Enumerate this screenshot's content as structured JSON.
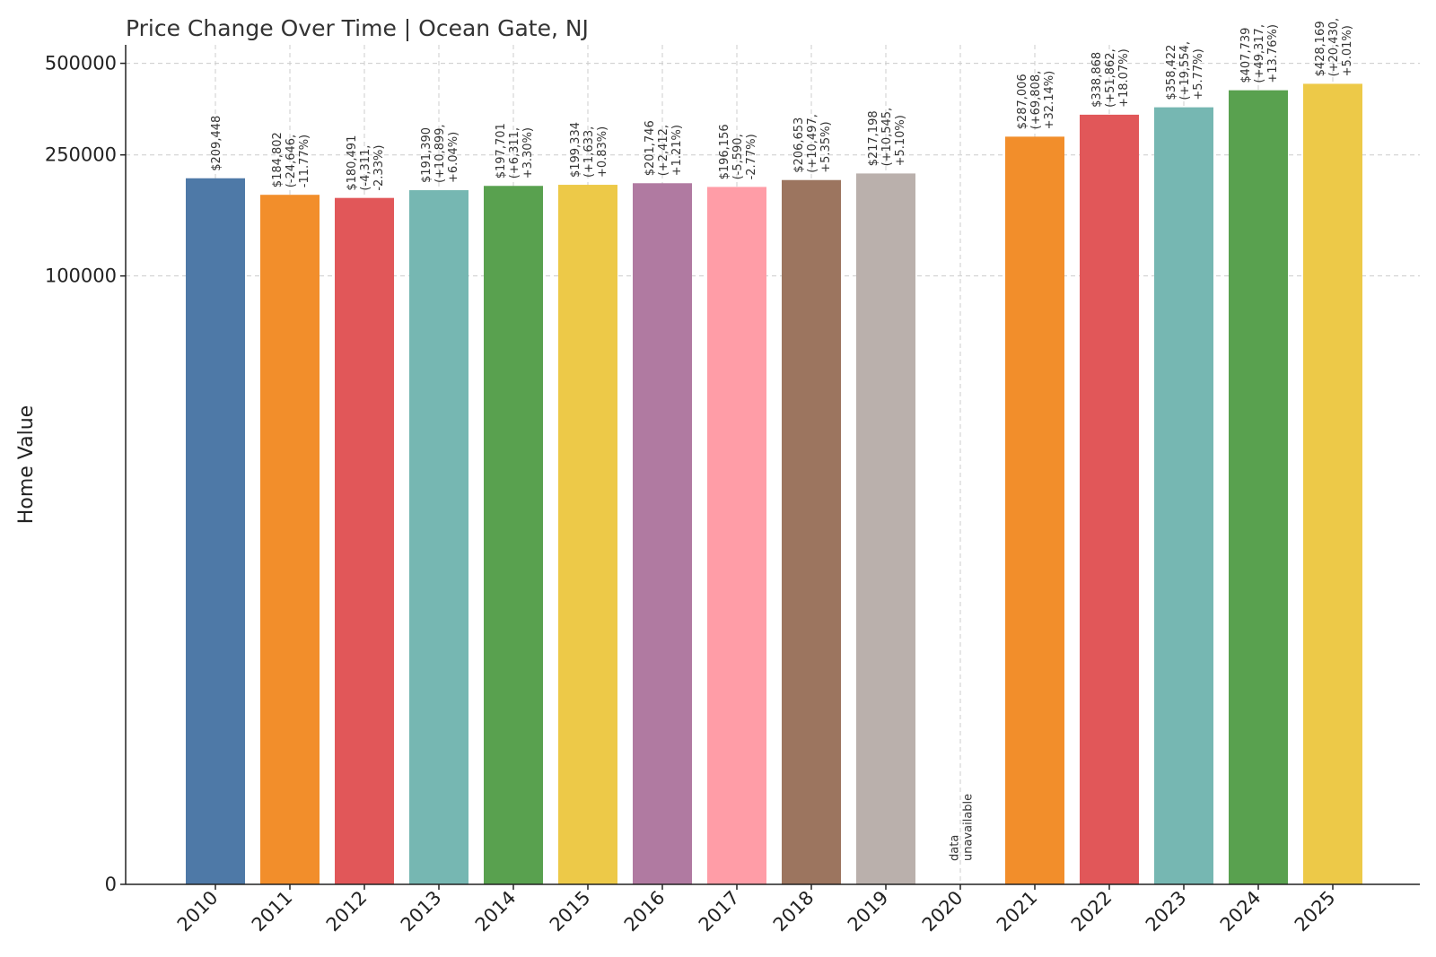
{
  "chart_data": {
    "type": "bar",
    "title": "Price Change Over Time | Ocean Gate, NJ",
    "xlabel": "",
    "ylabel": "Home Value",
    "ylim": [
      0,
      575000
    ],
    "yscale": "symlog",
    "yticks": [
      0,
      100000,
      250000,
      500000
    ],
    "ytick_labels": [
      "0",
      "100000",
      "250000",
      "500000"
    ],
    "grid": true,
    "categories": [
      "2010",
      "2011",
      "2012",
      "2013",
      "2014",
      "2015",
      "2016",
      "2017",
      "2018",
      "2019",
      "2020",
      "2021",
      "2022",
      "2023",
      "2024",
      "2025"
    ],
    "values": [
      209448,
      184802,
      180491,
      191390,
      197701,
      199334,
      201746,
      196156,
      206653,
      217198,
      null,
      287006,
      338868,
      358422,
      407739,
      428169
    ],
    "colors": [
      "#4e79a7",
      "#f28e2b",
      "#e15759",
      "#76b7b2",
      "#59a14f",
      "#edc948",
      "#b07aa1",
      "#ff9da7",
      "#9c755f",
      "#bab0ac",
      "#4e79a7",
      "#f28e2b",
      "#e15759",
      "#76b7b2",
      "#59a14f",
      "#edc948"
    ],
    "labels": [
      [
        "$209,448"
      ],
      [
        "$184,802",
        "(-24,646,",
        "-11.77%)"
      ],
      [
        "$180,491",
        "(-4,311,",
        "-2.33%)"
      ],
      [
        "$191,390",
        "(+10,899,",
        "+6.04%)"
      ],
      [
        "$197,701",
        "(+6,311,",
        "+3.30%)"
      ],
      [
        "$199,334",
        "(+1,633,",
        "+0.83%)"
      ],
      [
        "$201,746",
        "(+2,412,",
        "+1.21%)"
      ],
      [
        "$196,156",
        "(-5,590,",
        "-2.77%)"
      ],
      [
        "$206,653",
        "(+10,497,",
        "+5.35%)"
      ],
      [
        "$217,198",
        "(+10,545,",
        "+5.10%)"
      ],
      [
        "data",
        "unavailable"
      ],
      [
        "$287,006",
        "(+69,808,",
        "+32.14%)"
      ],
      [
        "$338,868",
        "(+51,862,",
        "+18.07%)"
      ],
      [
        "$358,422",
        "(+19,554,",
        "+5.77%)"
      ],
      [
        "$407,739",
        "(+49,317,",
        "+13.76%)"
      ],
      [
        "$428,169",
        "(+20,430,",
        "+5.01%)"
      ]
    ]
  }
}
